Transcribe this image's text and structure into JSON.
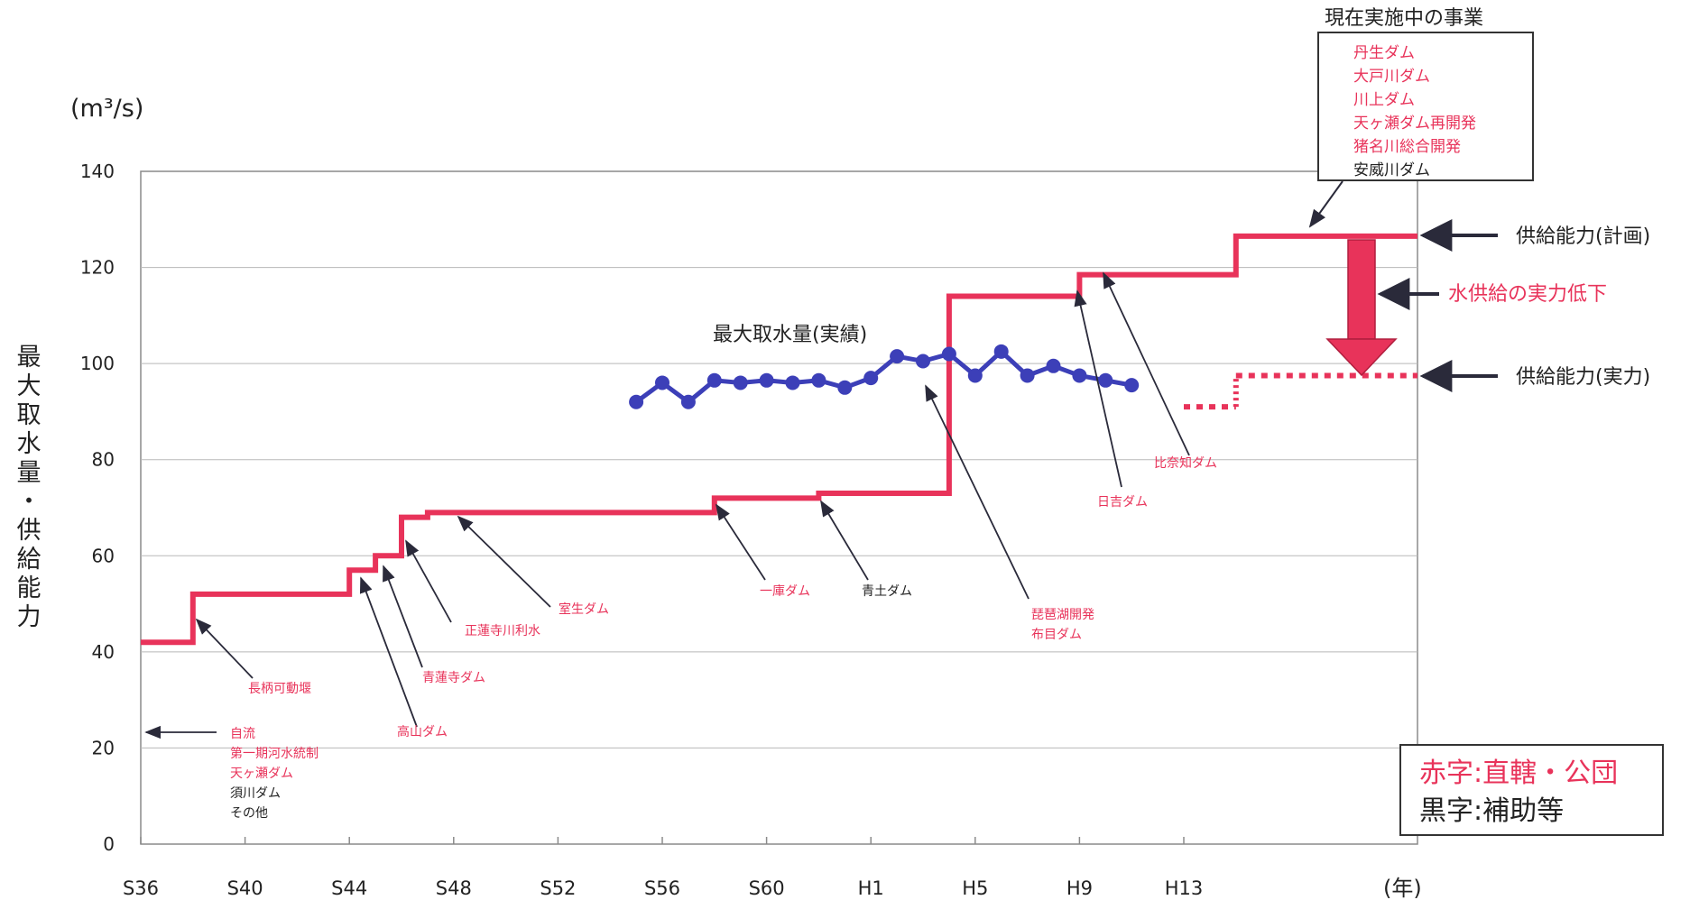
{
  "chart_data": {
    "type": "line",
    "unit_label": "(m³/s)",
    "ylabel": "最大取水量・供給能力",
    "x_unit_label": "(年)",
    "ylim": [
      0,
      140
    ],
    "yticks": [
      "140",
      "120",
      "100",
      "80",
      "60",
      "40",
      "20",
      "0"
    ],
    "xticks": [
      "S36",
      "S40",
      "S44",
      "S48",
      "S52",
      "S56",
      "S60",
      "H1",
      "H5",
      "H9",
      "H13"
    ],
    "series": [
      {
        "name": "最大取水量(実績)",
        "color": "#3c3fb8",
        "x": [
          "S55",
          "S56",
          "S57",
          "S58",
          "S59",
          "S60",
          "S61",
          "S62",
          "S63",
          "H1",
          "H2",
          "H3",
          "H4",
          "H5",
          "H6",
          "H7",
          "H8",
          "H9",
          "H10",
          "H11"
        ],
        "values": [
          92,
          96,
          92,
          96.5,
          96,
          96.5,
          96,
          96.5,
          95,
          97,
          101.5,
          100.5,
          102,
          97.5,
          102.5,
          97.5,
          99.5,
          97.5,
          96.5,
          95.5
        ]
      },
      {
        "name": "供給能力(計画)",
        "color": "#e8335a",
        "steps": [
          {
            "from": "S36",
            "to": "S38",
            "value": 42
          },
          {
            "from": "S38",
            "to": "S44",
            "value": 52
          },
          {
            "from": "S44",
            "to": "S45",
            "value": 57
          },
          {
            "from": "S45",
            "to": "S46",
            "value": 60
          },
          {
            "from": "S46",
            "to": "S47",
            "value": 68
          },
          {
            "from": "S47",
            "to": "S58",
            "value": 69
          },
          {
            "from": "S58",
            "to": "S62",
            "value": 72
          },
          {
            "from": "S62",
            "to": "H4",
            "value": 73
          },
          {
            "from": "H4",
            "to": "H9",
            "value": 114
          },
          {
            "from": "H9",
            "to": "H15",
            "value": 118.5
          },
          {
            "from": "H15",
            "to": "end",
            "value": 126.5
          }
        ]
      },
      {
        "name": "供給能力(実力)",
        "color": "#e8335a",
        "dashed": true,
        "segments": [
          {
            "from": "H13",
            "to": "H15",
            "value": 91
          },
          {
            "from": "H15",
            "to": "end",
            "value": 97.5
          }
        ]
      }
    ],
    "annotations": {
      "current_projects_title": "現在実施中の事業",
      "current_projects": [
        {
          "text": "丹生ダム",
          "color": "red"
        },
        {
          "text": "大戸川ダム",
          "color": "red"
        },
        {
          "text": "川上ダム",
          "color": "red"
        },
        {
          "text": "天ヶ瀬ダム再開発",
          "color": "red"
        },
        {
          "text": "猪名川総合開発",
          "color": "red"
        },
        {
          "text": "安威川ダム",
          "color": "black"
        }
      ],
      "supply_plan": "供給能力(計画)",
      "supply_actual": "供給能力(実力)",
      "supply_drop": "水供給の実力低下",
      "max_intake_label": "最大取水量(実績)",
      "base_sources": [
        {
          "text": "自流",
          "color": "red"
        },
        {
          "text": "第一期河水統制",
          "color": "red"
        },
        {
          "text": "天ヶ瀬ダム",
          "color": "red"
        },
        {
          "text": "須川ダム",
          "color": "black"
        },
        {
          "text": "その他",
          "color": "black"
        }
      ],
      "labels": [
        {
          "text": "長柄可動堰",
          "color": "red"
        },
        {
          "text": "高山ダム",
          "color": "red"
        },
        {
          "text": "青蓮寺ダム",
          "color": "red"
        },
        {
          "text": "正蓮寺川利水",
          "color": "red"
        },
        {
          "text": "室生ダム",
          "color": "red"
        },
        {
          "text": "一庫ダム",
          "color": "red"
        },
        {
          "text": "青土ダム",
          "color": "black"
        },
        {
          "text": "琵琶湖開発",
          "color": "red"
        },
        {
          "text": "布目ダム",
          "color": "red"
        },
        {
          "text": "日吉ダム",
          "color": "red"
        },
        {
          "text": "比奈知ダム",
          "color": "red"
        }
      ]
    },
    "legend": {
      "red_text": "赤字:直轄・公団",
      "black_text": "黒字:補助等",
      "position": "bottom-right"
    },
    "grid": true
  },
  "colors": {
    "red": "#e8335a",
    "blue": "#3c3fb8",
    "black": "#222222",
    "grid": "#b8b8b8"
  }
}
